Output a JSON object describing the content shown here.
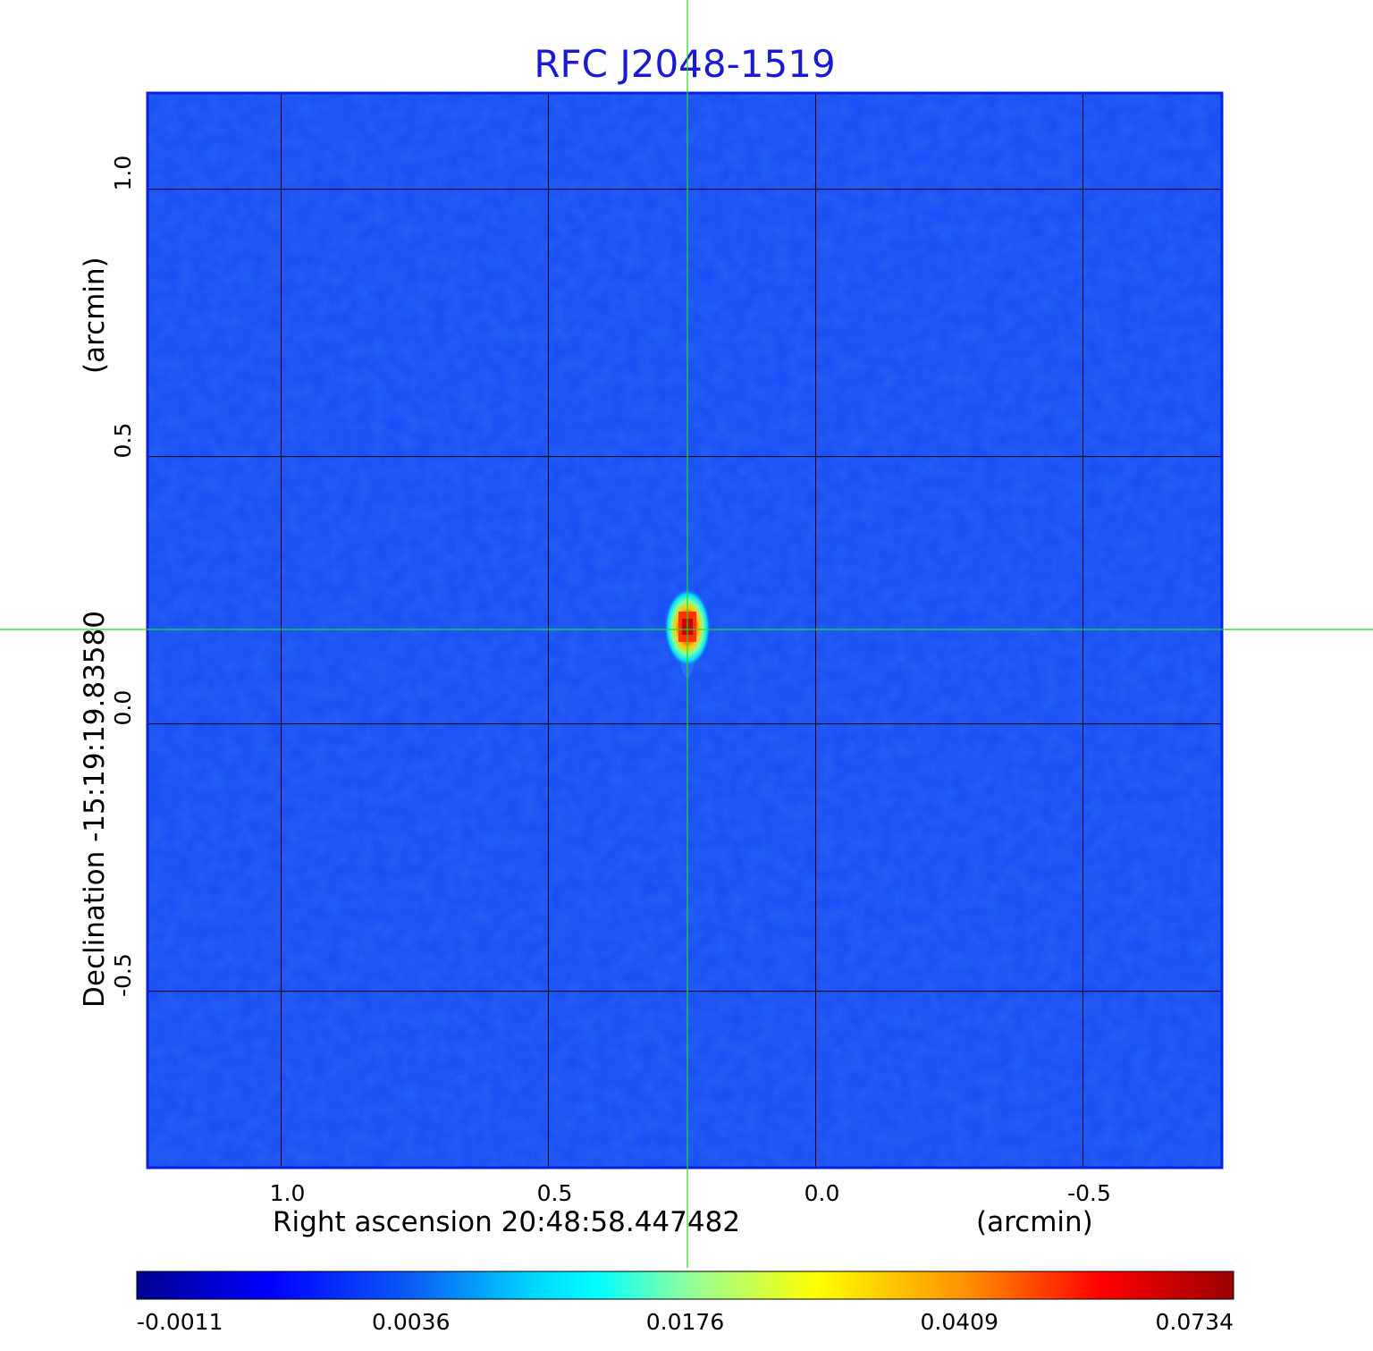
{
  "chart_data": {
    "type": "heatmap",
    "title": "RFC J2048-1519",
    "xlabel": "Right ascension  20:48:58.447482",
    "xunit": "(arcmin)",
    "ylabel": "Declination  -15:19:19.83580",
    "yunit": "(arcmin)",
    "xlim": [
      1.25,
      -0.76
    ],
    "ylim": [
      -0.83,
      1.18
    ],
    "x_ticks": [
      1.0,
      0.5,
      0.0,
      -0.5
    ],
    "y_ticks": [
      1.0,
      0.5,
      0.0,
      -0.5
    ],
    "x_tick_labels": [
      "1.0",
      "0.5",
      "0.0",
      "-0.5"
    ],
    "y_tick_labels": [
      "1.0",
      "0.5",
      "0.0",
      "-0.5"
    ],
    "grid": true,
    "source": {
      "ra_offset": 0.24,
      "dec_offset": 0.17,
      "peak": 0.0734
    },
    "crosshair": {
      "x": 0.24,
      "y": 0.17,
      "color": "#22dd22"
    },
    "colorbar": {
      "tick_labels": [
        "-0.0011",
        "0.0036",
        "0.0176",
        "0.0409",
        "0.0734"
      ],
      "colormap": "jet"
    },
    "colors": {
      "title": "#1a1ad6",
      "background_field": "#1a4ff5",
      "frame": "#0a22e0",
      "grid": "#000000"
    }
  }
}
